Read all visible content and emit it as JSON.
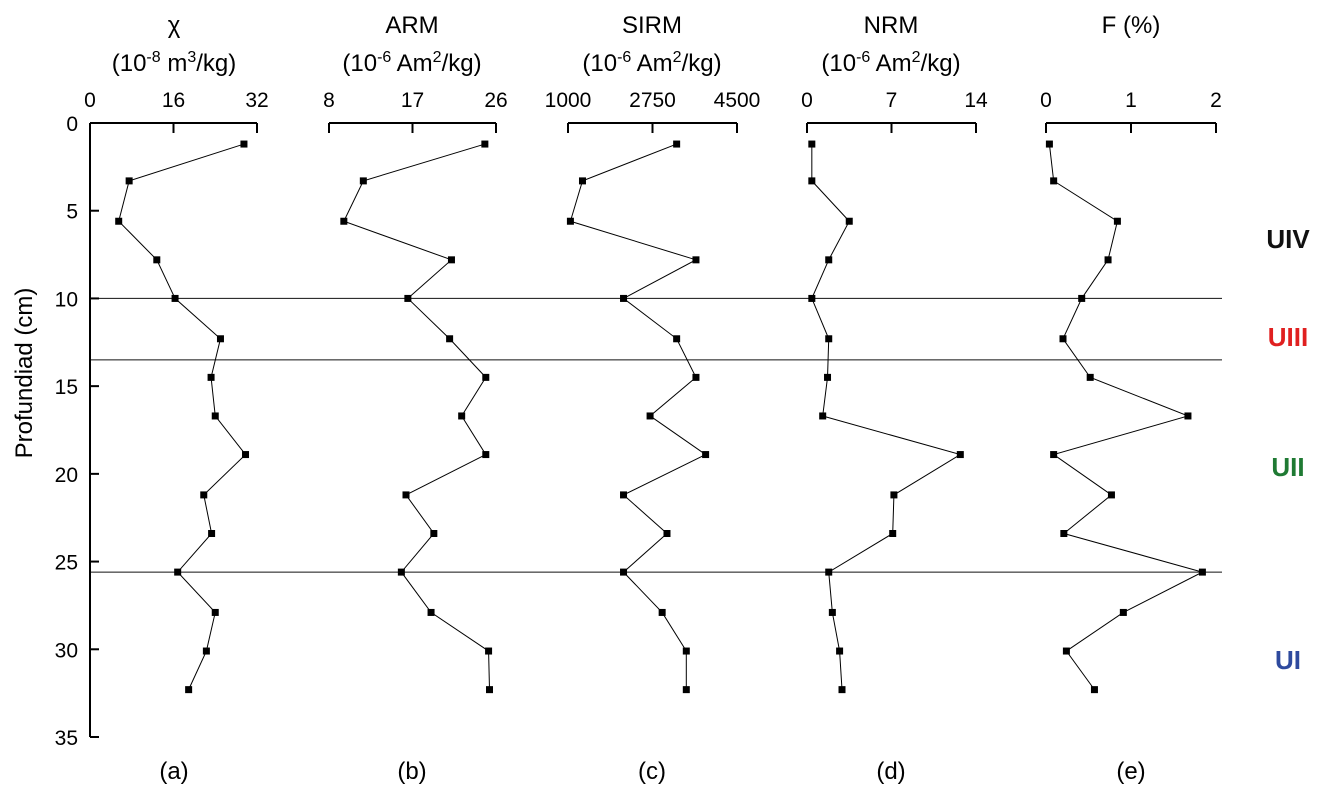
{
  "chart_data": {
    "type": "line",
    "y_axis": {
      "label": "Profundiad (cm)",
      "lim": [
        0,
        35
      ],
      "ticks": [
        0,
        5,
        10,
        15,
        20,
        25,
        30,
        35
      ],
      "inverted": true
    },
    "depth": [
      1.2,
      3.3,
      5.6,
      7.8,
      10.0,
      12.3,
      14.5,
      16.7,
      18.9,
      21.2,
      23.4,
      25.6,
      27.9,
      30.1,
      32.3
    ],
    "panels": [
      {
        "id": "a",
        "panel_label": "(a)",
        "title_line1": "χ",
        "title_unit": {
          "pre": "(10",
          "exp1": "-8",
          "mid": " m",
          "exp2": "3",
          "post": "/kg)"
        },
        "xlim": [
          0,
          32
        ],
        "xticks": [
          0,
          16,
          32
        ],
        "values": [
          29.5,
          7.5,
          5.5,
          12.8,
          16.3,
          25.0,
          23.2,
          24.0,
          29.8,
          21.8,
          23.3,
          16.8,
          24.0,
          22.3,
          18.9
        ]
      },
      {
        "id": "b",
        "panel_label": "(b)",
        "title_line1": "ARM",
        "title_unit": {
          "pre": "(10",
          "exp1": "-6",
          "mid": " Am",
          "exp2": "2",
          "post": "/kg)"
        },
        "xlim": [
          8,
          26
        ],
        "xticks": [
          8,
          17,
          26
        ],
        "values": [
          24.8,
          11.7,
          9.6,
          21.2,
          16.5,
          21.0,
          24.9,
          22.3,
          24.9,
          16.3,
          19.3,
          15.8,
          19.0,
          25.2,
          25.3
        ]
      },
      {
        "id": "c",
        "panel_label": "(c)",
        "title_line1": "SIRM",
        "title_unit": {
          "pre": "(10",
          "exp1": "-6",
          "mid": " Am",
          "exp2": "2",
          "post": "/kg)"
        },
        "xlim": [
          1000,
          4500
        ],
        "xticks": [
          1000,
          2750,
          4500
        ],
        "xtick_labels": [
          "1000",
          "2750",
          "4500"
        ],
        "values": [
          3250,
          1300,
          1050,
          3650,
          2150,
          3250,
          3650,
          2700,
          3850,
          2150,
          3050,
          2150,
          2950,
          3450,
          3450
        ]
      },
      {
        "id": "d",
        "panel_label": "(d)",
        "title_line1": "NRM",
        "title_unit": {
          "pre": "(10",
          "exp1": "-6",
          "mid": " Am",
          "exp2": "2",
          "post": "/kg)"
        },
        "xlim": [
          0,
          14
        ],
        "xticks": [
          0,
          7,
          14
        ],
        "values": [
          0.4,
          0.4,
          3.5,
          1.8,
          0.4,
          1.8,
          1.7,
          1.3,
          12.7,
          7.2,
          7.1,
          1.8,
          2.1,
          2.7,
          2.9
        ]
      },
      {
        "id": "e",
        "panel_label": "(e)",
        "title_line1": "F (%)",
        "title_unit": null,
        "xlim": [
          0,
          2
        ],
        "xticks": [
          0,
          1,
          2
        ],
        "values": [
          0.04,
          0.09,
          0.84,
          0.73,
          0.42,
          0.2,
          0.52,
          1.67,
          0.09,
          0.77,
          0.21,
          1.84,
          0.91,
          0.24,
          0.57
        ]
      }
    ],
    "unit_boundaries": [
      10.0,
      13.5,
      25.6
    ],
    "units": [
      {
        "label": "UIV",
        "depth": 6.6,
        "color": "#111111"
      },
      {
        "label": "UIII",
        "depth": 12.2,
        "color": "#e02020"
      },
      {
        "label": "UII",
        "depth": 19.6,
        "color": "#1f7a33"
      },
      {
        "label": "UI",
        "depth": 30.6,
        "color": "#2e4a9e"
      }
    ]
  }
}
